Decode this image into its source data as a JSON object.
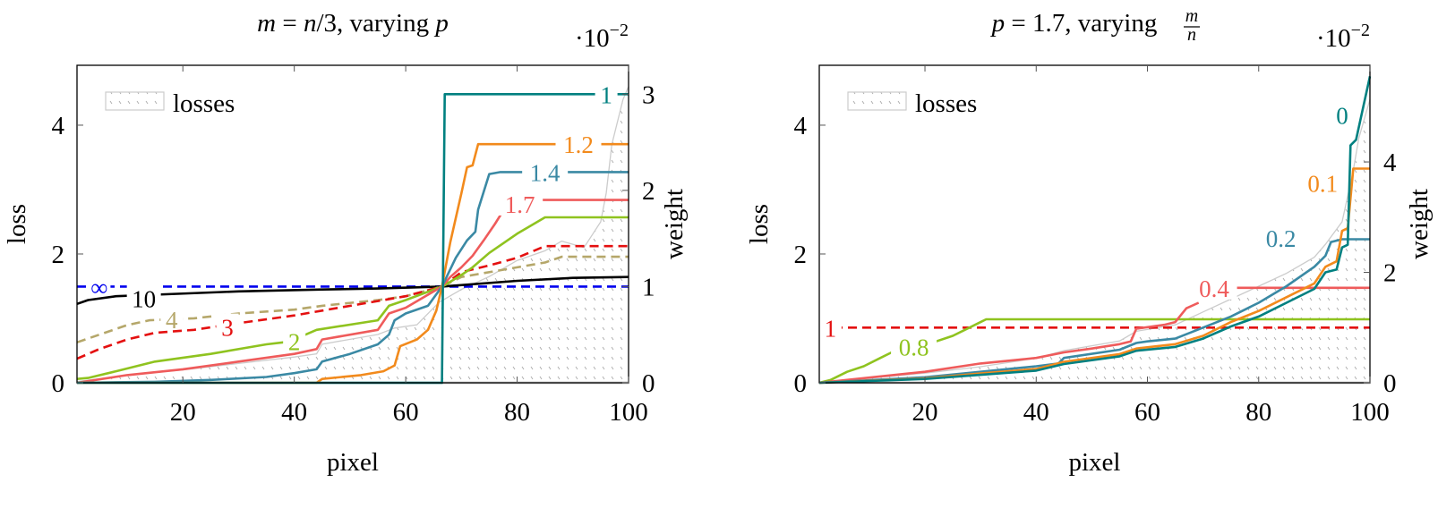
{
  "charts_meta": {
    "multiplier": "·10",
    "multiplier_exp": "−2"
  },
  "chart_data": [
    {
      "type": "line",
      "title": {
        "lhs": "m",
        "eq": " = ",
        "rhs_n": "n",
        "rhs_rest": "/3",
        "text": ", varying ",
        "var": "p"
      },
      "xlabel": "pixel",
      "ylabel": "loss",
      "y2label": "weight",
      "y2_multiplier": "·10^-2",
      "xlim": [
        1,
        100
      ],
      "ylim": [
        0,
        4.93
      ],
      "y2lim": [
        0,
        3.3
      ],
      "xticks": [
        "20",
        "40",
        "60",
        "80",
        "100"
      ],
      "yticks": [
        "0",
        "2",
        "4"
      ],
      "y2ticks": [
        "0",
        "1",
        "2",
        "3"
      ],
      "grid": false,
      "legend": {
        "position": "top-left",
        "entries": [
          "losses"
        ]
      },
      "area": {
        "name": "losses",
        "axis": "loss",
        "color": "#cccccc",
        "x": [
          1,
          10,
          20,
          30,
          40,
          44,
          45,
          55,
          58,
          62,
          66,
          70,
          75,
          80,
          85,
          88,
          92,
          95,
          96,
          97,
          99,
          100
        ],
        "y": [
          0.02,
          0.12,
          0.2,
          0.3,
          0.4,
          0.45,
          0.6,
          0.75,
          0.85,
          0.9,
          1.25,
          1.45,
          1.65,
          1.9,
          2.05,
          2.2,
          2.1,
          2.5,
          2.95,
          3.7,
          4.4,
          4.6
        ]
      },
      "series": [
        {
          "name": "∞",
          "color": "#0000ee",
          "dashed": true,
          "label_at": [
            5,
            1.0
          ],
          "x": [
            1,
            100
          ],
          "y": [
            1.0,
            1.0
          ]
        },
        {
          "name": "10",
          "color": "#000000",
          "dashed": false,
          "label_at": [
            13,
            0.88
          ],
          "x": [
            1,
            3,
            8,
            17,
            30,
            45,
            55,
            66.5,
            80,
            90,
            100
          ],
          "y": [
            0.82,
            0.86,
            0.9,
            0.92,
            0.95,
            0.97,
            0.98,
            1.0,
            1.06,
            1.09,
            1.1
          ]
        },
        {
          "name": "4",
          "color": "#b5a76a",
          "dashed": true,
          "label_at": [
            18,
            0.66
          ],
          "x": [
            1,
            5,
            10,
            14,
            22,
            30,
            40,
            45,
            55,
            60,
            66.5,
            70,
            80,
            85,
            88,
            100
          ],
          "y": [
            0.42,
            0.5,
            0.6,
            0.65,
            0.67,
            0.72,
            0.76,
            0.8,
            0.86,
            0.9,
            1.0,
            1.1,
            1.2,
            1.25,
            1.31,
            1.31
          ]
        },
        {
          "name": "3",
          "color": "#e41010",
          "dashed": true,
          "label_at": [
            28,
            0.58
          ],
          "x": [
            1,
            5,
            10,
            15,
            22,
            30,
            40,
            45,
            55,
            60,
            66.5,
            70,
            75,
            80,
            85,
            100
          ],
          "y": [
            0.25,
            0.35,
            0.45,
            0.52,
            0.55,
            0.62,
            0.7,
            0.75,
            0.85,
            0.9,
            1.0,
            1.15,
            1.22,
            1.3,
            1.42,
            1.42
          ]
        },
        {
          "name": "2",
          "color": "#8fc31f",
          "dashed": false,
          "label_at": [
            40,
            0.43
          ],
          "x": [
            1,
            3,
            8,
            15,
            25,
            35,
            38,
            42,
            44,
            55,
            57,
            60,
            66.5,
            68,
            70,
            72,
            75,
            80,
            85,
            100
          ],
          "y": [
            0.04,
            0.05,
            0.12,
            0.22,
            0.3,
            0.4,
            0.42,
            0.5,
            0.55,
            0.65,
            0.8,
            0.86,
            1.0,
            1.05,
            1.12,
            1.2,
            1.35,
            1.55,
            1.72,
            1.72
          ]
        },
        {
          "name": "1.7",
          "color": "#ef5b5b",
          "dashed": false,
          "label_at": [
            80.5,
            1.86
          ],
          "x": [
            1,
            10,
            20,
            30,
            40,
            44,
            45,
            55,
            57,
            60,
            66.5,
            68,
            70,
            72,
            74,
            76,
            77.3
          ],
          "y": [
            0,
            0.08,
            0.14,
            0.22,
            0.3,
            0.35,
            0.45,
            0.55,
            0.72,
            0.78,
            1.0,
            1.1,
            1.2,
            1.32,
            1.48,
            1.65,
            1.77
          ],
          "x2": [
            83,
            100
          ],
          "y2": [
            1.9,
            1.9
          ]
        },
        {
          "name": "1.4",
          "color": "#3a89a4",
          "dashed": false,
          "label_at": [
            85,
            2.19
          ],
          "x": [
            1,
            15,
            25,
            35,
            40,
            44,
            45,
            50,
            55,
            57,
            58,
            60,
            64,
            66.5,
            69,
            71,
            72.5,
            73,
            75,
            77,
            100
          ],
          "y": [
            0,
            0.01,
            0.03,
            0.06,
            0.1,
            0.14,
            0.22,
            0.3,
            0.4,
            0.5,
            0.65,
            0.72,
            0.8,
            1.0,
            1.3,
            1.48,
            1.57,
            1.8,
            2.17,
            2.19,
            2.19
          ]
        },
        {
          "name": "1.2",
          "color": "#f28a1c",
          "dashed": false,
          "label_at": [
            91,
            2.48
          ],
          "x": [
            1,
            44,
            45,
            52,
            56,
            58,
            59,
            62,
            64,
            65.5,
            66.5,
            68,
            70,
            71,
            72,
            73,
            100
          ],
          "y": [
            0,
            0,
            0.04,
            0.08,
            0.12,
            0.18,
            0.38,
            0.45,
            0.55,
            0.75,
            1.0,
            1.46,
            1.97,
            2.24,
            2.26,
            2.48,
            2.48
          ]
        },
        {
          "name": "1",
          "color": "#008080",
          "dashed": false,
          "label_at": [
            96,
            3.0
          ],
          "x": [
            1,
            66.5,
            67,
            100
          ],
          "y": [
            0,
            0,
            3.0,
            3.0
          ]
        }
      ]
    },
    {
      "type": "line",
      "title": {
        "lhs": "p",
        "eq": " = 1.7",
        "text": ", varying ",
        "frac_num": "m",
        "frac_den": "n"
      },
      "xlabel": "pixel",
      "ylabel": "loss",
      "y2label": "weight",
      "y2_multiplier": "·10^-2",
      "xlim": [
        1,
        100
      ],
      "ylim": [
        0,
        4.93
      ],
      "y2lim": [
        0,
        5.75
      ],
      "xticks": [
        "20",
        "40",
        "60",
        "80",
        "100"
      ],
      "yticks": [
        "0",
        "2",
        "4"
      ],
      "y2ticks": [
        "0",
        "2",
        "4"
      ],
      "grid": false,
      "legend": {
        "position": "top-left",
        "entries": [
          "losses"
        ]
      },
      "area": {
        "name": "losses",
        "axis": "loss",
        "color": "#cccccc",
        "x": [
          1,
          20,
          30,
          40,
          45,
          55,
          58,
          65,
          70,
          75,
          80,
          85,
          90,
          92,
          95,
          97,
          98,
          100
        ],
        "y": [
          0,
          0.15,
          0.25,
          0.38,
          0.5,
          0.65,
          0.8,
          0.9,
          1.1,
          1.3,
          1.5,
          1.7,
          1.95,
          2.15,
          2.5,
          3.3,
          3.8,
          4.4
        ]
      },
      "series": [
        {
          "name": "1",
          "color": "#e41010",
          "dashed": true,
          "label_at": [
            3,
            1.0
          ],
          "x": [
            1,
            100
          ],
          "y": [
            1.0,
            1.0
          ]
        },
        {
          "name": "0.8",
          "color": "#8fc31f",
          "dashed": false,
          "label_at": [
            18,
            0.66
          ],
          "x": [
            1,
            3,
            6,
            9,
            12,
            14,
            22,
            25,
            28,
            30,
            31,
            100
          ],
          "y": [
            0,
            0.05,
            0.2,
            0.3,
            0.45,
            0.55,
            0.75,
            0.85,
            1.0,
            1.1,
            1.15,
            1.15
          ]
        },
        {
          "name": "0.4",
          "color": "#ef5b5b",
          "dashed": false,
          "label_at": [
            72,
            1.72
          ],
          "x": [
            1,
            20,
            30,
            40,
            45,
            50,
            55,
            57,
            58,
            63,
            65,
            67,
            69.2
          ],
          "y": [
            0,
            0.2,
            0.35,
            0.45,
            0.55,
            0.62,
            0.7,
            0.75,
            0.98,
            1.05,
            1.1,
            1.35,
            1.45
          ],
          "x2": [
            75.5,
            100
          ],
          "y2": [
            1.72,
            1.72
          ]
        },
        {
          "name": "0.2",
          "color": "#3a89a4",
          "dashed": false,
          "label_at": [
            84,
            2.62
          ],
          "x": [
            1,
            20,
            30,
            40,
            44,
            45,
            55,
            58,
            60,
            65,
            70,
            75,
            80,
            85,
            90,
            92,
            93,
            95,
            100
          ],
          "y": [
            0,
            0.1,
            0.2,
            0.3,
            0.35,
            0.45,
            0.6,
            0.72,
            0.75,
            0.8,
            1.0,
            1.2,
            1.45,
            1.75,
            2.1,
            2.3,
            2.55,
            2.6,
            2.6
          ]
        },
        {
          "name": "0.1",
          "color": "#f28a1c",
          "dashed": false,
          "label_at": [
            91.5,
            3.62
          ],
          "x": [
            1,
            20,
            30,
            40,
            45,
            55,
            58,
            65,
            70,
            75,
            80,
            85,
            90,
            92,
            94,
            95,
            96,
            97,
            100
          ],
          "y": [
            0,
            0.08,
            0.17,
            0.25,
            0.38,
            0.52,
            0.62,
            0.7,
            0.85,
            1.1,
            1.3,
            1.55,
            1.8,
            2.1,
            2.2,
            2.75,
            2.8,
            3.88,
            3.88
          ]
        },
        {
          "name": "0",
          "color": "#008080",
          "dashed": false,
          "label_at": [
            95,
            4.85
          ],
          "x": [
            1,
            20,
            40,
            45,
            55,
            58,
            65,
            70,
            75,
            80,
            85,
            90,
            92,
            94,
            95,
            96,
            96.5,
            97.5,
            100
          ],
          "y": [
            0,
            0.07,
            0.22,
            0.34,
            0.48,
            0.58,
            0.65,
            0.8,
            1.02,
            1.2,
            1.45,
            1.7,
            2.0,
            2.05,
            2.45,
            2.5,
            4.3,
            4.4,
            5.55
          ]
        }
      ]
    }
  ]
}
